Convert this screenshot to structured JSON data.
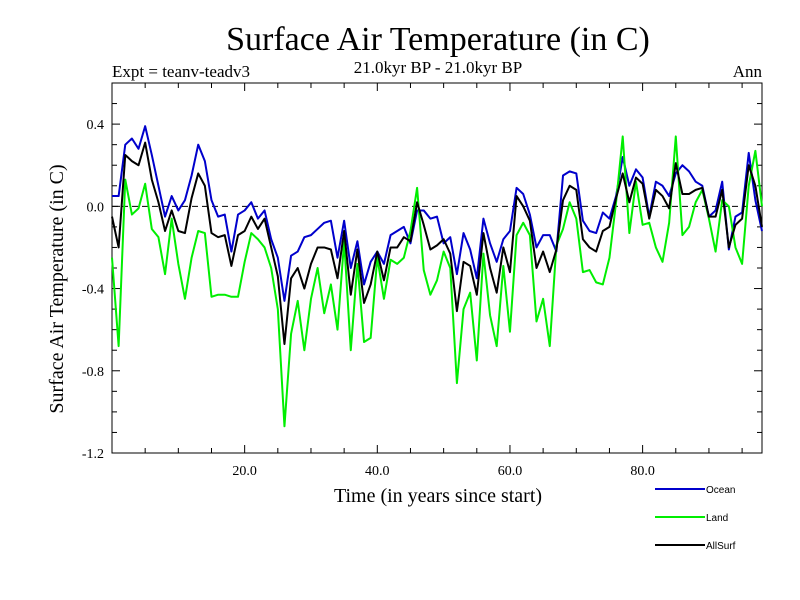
{
  "chart_data": {
    "type": "line",
    "title": "Surface Air Temperature (in C)",
    "subtitle": "21.0kyr BP - 21.0kyr BP",
    "left_label": "Expt = teanv-teadv3",
    "right_label": "Ann",
    "xlabel": "Time (in years since start)",
    "ylabel": "Surface Air Temperature (in C)",
    "xlim": [
      0,
      98
    ],
    "ylim": [
      -1.2,
      0.6
    ],
    "x_ticks": [
      20,
      40,
      60,
      80
    ],
    "x_tick_labels": [
      "20.0",
      "40.0",
      "60.0",
      "80.0"
    ],
    "y_ticks": [
      0.4,
      0.0,
      -0.4,
      -0.8,
      -1.2
    ],
    "y_tick_labels": [
      "0.4",
      "0.0",
      "-0.4",
      "-0.8",
      "-1.2"
    ],
    "reference_line": 0.0,
    "legend_position": "bottom-right",
    "x": [
      0,
      1,
      2,
      3,
      4,
      5,
      6,
      7,
      8,
      9,
      10,
      11,
      12,
      13,
      14,
      15,
      16,
      17,
      18,
      19,
      20,
      21,
      22,
      23,
      24,
      25,
      26,
      27,
      28,
      29,
      30,
      31,
      32,
      33,
      34,
      35,
      36,
      37,
      38,
      39,
      40,
      41,
      42,
      43,
      44,
      45,
      46,
      47,
      48,
      49,
      50,
      51,
      52,
      53,
      54,
      55,
      56,
      57,
      58,
      59,
      60,
      61,
      62,
      63,
      64,
      65,
      66,
      67,
      68,
      69,
      70,
      71,
      72,
      73,
      74,
      75,
      76,
      77,
      78,
      79,
      80,
      81,
      82,
      83,
      84,
      85,
      86,
      87,
      88,
      89,
      90,
      91,
      92,
      93,
      94,
      95,
      96,
      97,
      98
    ],
    "series": [
      {
        "name": "Ocean",
        "color": "#0000cc",
        "values": [
          0.05,
          0.05,
          0.3,
          0.33,
          0.28,
          0.39,
          0.25,
          0.1,
          -0.05,
          0.05,
          -0.02,
          0.03,
          0.15,
          0.3,
          0.22,
          0.03,
          -0.05,
          -0.04,
          -0.22,
          -0.04,
          -0.02,
          0.02,
          -0.06,
          -0.02,
          -0.16,
          -0.25,
          -0.46,
          -0.24,
          -0.22,
          -0.15,
          -0.14,
          -0.11,
          -0.08,
          -0.07,
          -0.25,
          -0.07,
          -0.3,
          -0.17,
          -0.38,
          -0.27,
          -0.22,
          -0.28,
          -0.14,
          -0.12,
          -0.1,
          -0.18,
          -0.02,
          -0.02,
          -0.06,
          -0.05,
          -0.18,
          -0.15,
          -0.33,
          -0.13,
          -0.21,
          -0.35,
          -0.06,
          -0.18,
          -0.27,
          -0.16,
          -0.12,
          0.09,
          0.06,
          -0.04,
          -0.2,
          -0.14,
          -0.14,
          -0.22,
          0.15,
          0.17,
          0.16,
          -0.07,
          -0.12,
          -0.13,
          -0.03,
          -0.06,
          0.05,
          0.24,
          0.1,
          0.18,
          0.14,
          -0.05,
          0.12,
          0.1,
          0.05,
          0.16,
          0.2,
          0.17,
          0.12,
          0.1,
          -0.05,
          -0.02,
          0.12,
          -0.21,
          -0.05,
          -0.03,
          0.26,
          0.03,
          -0.12
        ]
      },
      {
        "name": "Land",
        "color": "#00ee00",
        "values": [
          -0.25,
          -0.68,
          0.13,
          -0.04,
          -0.01,
          0.11,
          -0.11,
          -0.15,
          -0.33,
          -0.06,
          -0.28,
          -0.45,
          -0.25,
          -0.12,
          -0.13,
          -0.44,
          -0.43,
          -0.43,
          -0.44,
          -0.44,
          -0.27,
          -0.13,
          -0.16,
          -0.2,
          -0.3,
          -0.5,
          -1.07,
          -0.62,
          -0.46,
          -0.7,
          -0.45,
          -0.3,
          -0.52,
          -0.38,
          -0.6,
          -0.17,
          -0.7,
          -0.28,
          -0.66,
          -0.64,
          -0.25,
          -0.45,
          -0.26,
          -0.28,
          -0.25,
          -0.12,
          0.09,
          -0.31,
          -0.43,
          -0.36,
          -0.22,
          -0.3,
          -0.86,
          -0.5,
          -0.42,
          -0.75,
          -0.23,
          -0.53,
          -0.68,
          -0.29,
          -0.61,
          -0.14,
          -0.08,
          -0.14,
          -0.56,
          -0.45,
          -0.68,
          -0.19,
          -0.11,
          0.02,
          -0.06,
          -0.32,
          -0.31,
          -0.37,
          -0.38,
          -0.25,
          0.02,
          0.34,
          -0.13,
          0.12,
          -0.09,
          -0.08,
          -0.2,
          -0.27,
          -0.08,
          0.34,
          -0.14,
          -0.1,
          0.02,
          0.08,
          -0.06,
          -0.22,
          0.03,
          0.0,
          -0.2,
          -0.28,
          0.1,
          0.27,
          0.0
        ]
      },
      {
        "name": "AllSurf",
        "color": "#000000",
        "values": [
          -0.05,
          -0.2,
          0.25,
          0.22,
          0.2,
          0.31,
          0.13,
          0.02,
          -0.12,
          -0.02,
          -0.12,
          -0.13,
          0.04,
          0.16,
          0.1,
          -0.13,
          -0.15,
          -0.14,
          -0.29,
          -0.14,
          -0.12,
          -0.05,
          -0.11,
          -0.06,
          -0.2,
          -0.34,
          -0.67,
          -0.35,
          -0.3,
          -0.4,
          -0.28,
          -0.2,
          -0.2,
          -0.21,
          -0.35,
          -0.12,
          -0.43,
          -0.21,
          -0.47,
          -0.38,
          -0.22,
          -0.36,
          -0.2,
          -0.2,
          -0.15,
          -0.17,
          0.02,
          -0.09,
          -0.21,
          -0.19,
          -0.16,
          -0.23,
          -0.51,
          -0.27,
          -0.29,
          -0.43,
          -0.13,
          -0.3,
          -0.42,
          -0.2,
          -0.32,
          0.05,
          0.0,
          -0.07,
          -0.3,
          -0.22,
          -0.32,
          -0.21,
          0.03,
          0.1,
          0.08,
          -0.16,
          -0.2,
          -0.22,
          -0.12,
          -0.1,
          0.04,
          0.16,
          0.02,
          0.14,
          0.11,
          -0.06,
          0.08,
          0.05,
          -0.01,
          0.21,
          0.06,
          0.06,
          0.08,
          0.09,
          -0.05,
          -0.05,
          0.08,
          -0.2,
          -0.09,
          -0.06,
          0.2,
          0.1,
          -0.1
        ]
      }
    ]
  }
}
